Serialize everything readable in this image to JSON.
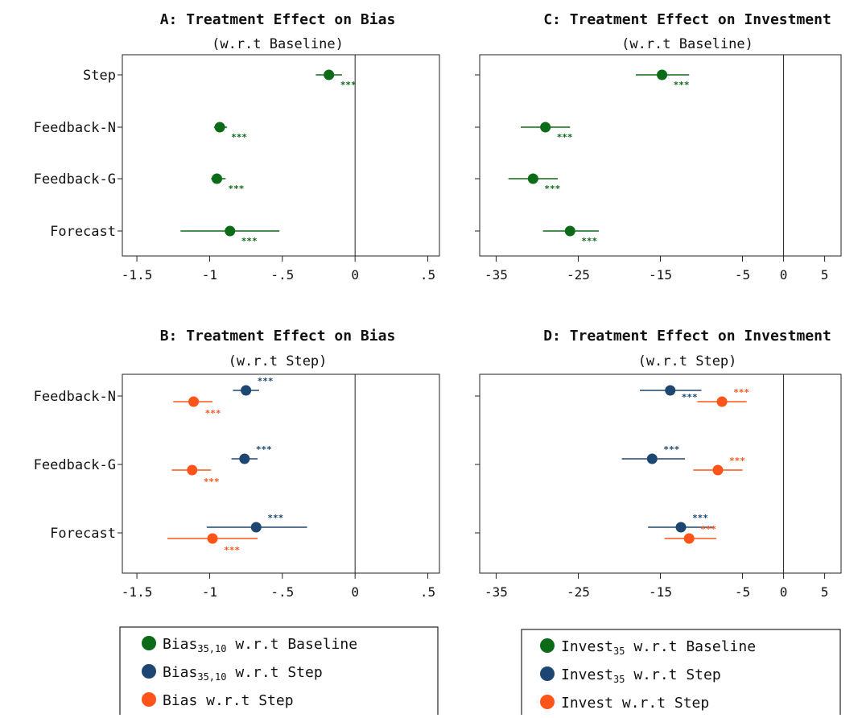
{
  "chart_data": [
    {
      "id": "A",
      "type": "scatter",
      "title": "A: Treatment Effect on Bias",
      "subtitle": "(w.r.t Baseline)",
      "categories": [
        "Step",
        "Feedback-N",
        "Feedback-G",
        "Forecast"
      ],
      "xlim": [
        -1.6,
        0.58
      ],
      "xticks": [
        -1.5,
        -1,
        -0.5,
        0,
        0.5
      ],
      "xtick_labels": [
        "-1.5",
        "-1",
        "-.5",
        "0",
        ".5"
      ],
      "reference_line": 0,
      "series": [
        {
          "name": "Bias35,10 w.r.t Baseline",
          "color": "#0b6b17",
          "points": [
            {
              "category": "Step",
              "estimate": -0.18,
              "ci": [
                -0.27,
                -0.09
              ],
              "stars": "***"
            },
            {
              "category": "Feedback-N",
              "estimate": -0.93,
              "ci": [
                -0.97,
                -0.88
              ],
              "stars": "***"
            },
            {
              "category": "Feedback-G",
              "estimate": -0.95,
              "ci": [
                -0.99,
                -0.89
              ],
              "stars": "***"
            },
            {
              "category": "Forecast",
              "estimate": -0.86,
              "ci": [
                -1.2,
                -0.52
              ],
              "stars": "***"
            }
          ]
        }
      ]
    },
    {
      "id": "C",
      "type": "scatter",
      "title": "C: Treatment Effect on Investment",
      "subtitle": "(w.r.t Baseline)",
      "categories": [
        "Step",
        "Feedback-N",
        "Feedback-G",
        "Forecast"
      ],
      "xlim": [
        -37,
        7
      ],
      "xticks": [
        -35,
        -25,
        -15,
        -5,
        0,
        5
      ],
      "xtick_labels": [
        "-35",
        "-25",
        "-15",
        "-5",
        "0",
        "5"
      ],
      "reference_line": 0,
      "series": [
        {
          "name": "Invest35 w.r.t Baseline",
          "color": "#0b6b17",
          "points": [
            {
              "category": "Step",
              "estimate": -14.8,
              "ci": [
                -18,
                -11.5
              ],
              "stars": "***"
            },
            {
              "category": "Feedback-N",
              "estimate": -29,
              "ci": [
                -32,
                -26
              ],
              "stars": "***"
            },
            {
              "category": "Feedback-G",
              "estimate": -30.5,
              "ci": [
                -33.5,
                -27.5
              ],
              "stars": "***"
            },
            {
              "category": "Forecast",
              "estimate": -26,
              "ci": [
                -29.3,
                -22.5
              ],
              "stars": "***"
            }
          ]
        }
      ]
    },
    {
      "id": "B",
      "type": "scatter",
      "title": "B: Treatment Effect on Bias",
      "subtitle": "(w.r.t Step)",
      "categories": [
        "Feedback-N",
        "Feedback-G",
        "Forecast"
      ],
      "xlim": [
        -1.6,
        0.58
      ],
      "xticks": [
        -1.5,
        -1,
        -0.5,
        0,
        0.5
      ],
      "xtick_labels": [
        "-1.5",
        "-1",
        "-.5",
        "0",
        ".5"
      ],
      "reference_line": 0,
      "series": [
        {
          "name": "Bias35,10 w.r.t Step",
          "color": "#1d4772",
          "points": [
            {
              "category": "Feedback-N",
              "estimate": -0.75,
              "ci": [
                -0.84,
                -0.66
              ],
              "stars": "***"
            },
            {
              "category": "Feedback-G",
              "estimate": -0.76,
              "ci": [
                -0.85,
                -0.67
              ],
              "stars": "***"
            },
            {
              "category": "Forecast",
              "estimate": -0.68,
              "ci": [
                -1.02,
                -0.33
              ],
              "stars": "***"
            }
          ]
        },
        {
          "name": "Bias w.r.t Step",
          "color": "#ff5419",
          "points": [
            {
              "category": "Feedback-N",
              "estimate": -1.11,
              "ci": [
                -1.25,
                -0.98
              ],
              "stars": "***"
            },
            {
              "category": "Feedback-G",
              "estimate": -1.12,
              "ci": [
                -1.26,
                -0.99
              ],
              "stars": "***"
            },
            {
              "category": "Forecast",
              "estimate": -0.98,
              "ci": [
                -1.29,
                -0.67
              ],
              "stars": "***"
            }
          ]
        }
      ]
    },
    {
      "id": "D",
      "type": "scatter",
      "title": "D: Treatment Effect on Investment",
      "subtitle": "(w.r.t Step)",
      "categories": [
        "Feedback-N",
        "Feedback-G",
        "Forecast"
      ],
      "xlim": [
        -37,
        7
      ],
      "xticks": [
        -35,
        -25,
        -15,
        -5,
        0,
        5
      ],
      "xtick_labels": [
        "-35",
        "-25",
        "-15",
        "-5",
        "0",
        "5"
      ],
      "reference_line": 0,
      "series": [
        {
          "name": "Invest35 w.r.t Step",
          "color": "#1d4772",
          "points": [
            {
              "category": "Feedback-N",
              "estimate": -13.8,
              "ci": [
                -17.5,
                -10
              ],
              "stars": "***"
            },
            {
              "category": "Feedback-G",
              "estimate": -16,
              "ci": [
                -19.7,
                -12
              ],
              "stars": "***"
            },
            {
              "category": "Forecast",
              "estimate": -12.5,
              "ci": [
                -16.5,
                -8.5
              ],
              "stars": "***"
            }
          ]
        },
        {
          "name": "Invest w.r.t Step",
          "color": "#ff5419",
          "points": [
            {
              "category": "Feedback-N",
              "estimate": -7.5,
              "ci": [
                -10.5,
                -4.5
              ],
              "stars": "***"
            },
            {
              "category": "Feedback-G",
              "estimate": -8,
              "ci": [
                -11,
                -5
              ],
              "stars": "***"
            },
            {
              "category": "Forecast",
              "estimate": -11.5,
              "ci": [
                -14.5,
                -8.2
              ],
              "stars": "***"
            }
          ]
        }
      ]
    }
  ],
  "legends": [
    {
      "items": [
        {
          "label_main": "Bias",
          "label_sub": "35,10",
          "label_rest": " w.r.t Baseline",
          "color": "#0b6b17"
        },
        {
          "label_main": "Bias",
          "label_sub": "35,10",
          "label_rest": " w.r.t Step",
          "color": "#1d4772"
        },
        {
          "label_main": "Bias w.r.t Step",
          "label_sub": "",
          "label_rest": "",
          "color": "#ff5419"
        }
      ]
    },
    {
      "items": [
        {
          "label_main": "Invest",
          "label_sub": "35",
          "label_rest": " w.r.t Baseline",
          "color": "#0b6b17"
        },
        {
          "label_main": "Invest",
          "label_sub": "35",
          "label_rest": " w.r.t Step",
          "color": "#1d4772"
        },
        {
          "label_main": "Invest w.r.t Step",
          "label_sub": "",
          "label_rest": "",
          "color": "#ff5419"
        }
      ]
    }
  ]
}
